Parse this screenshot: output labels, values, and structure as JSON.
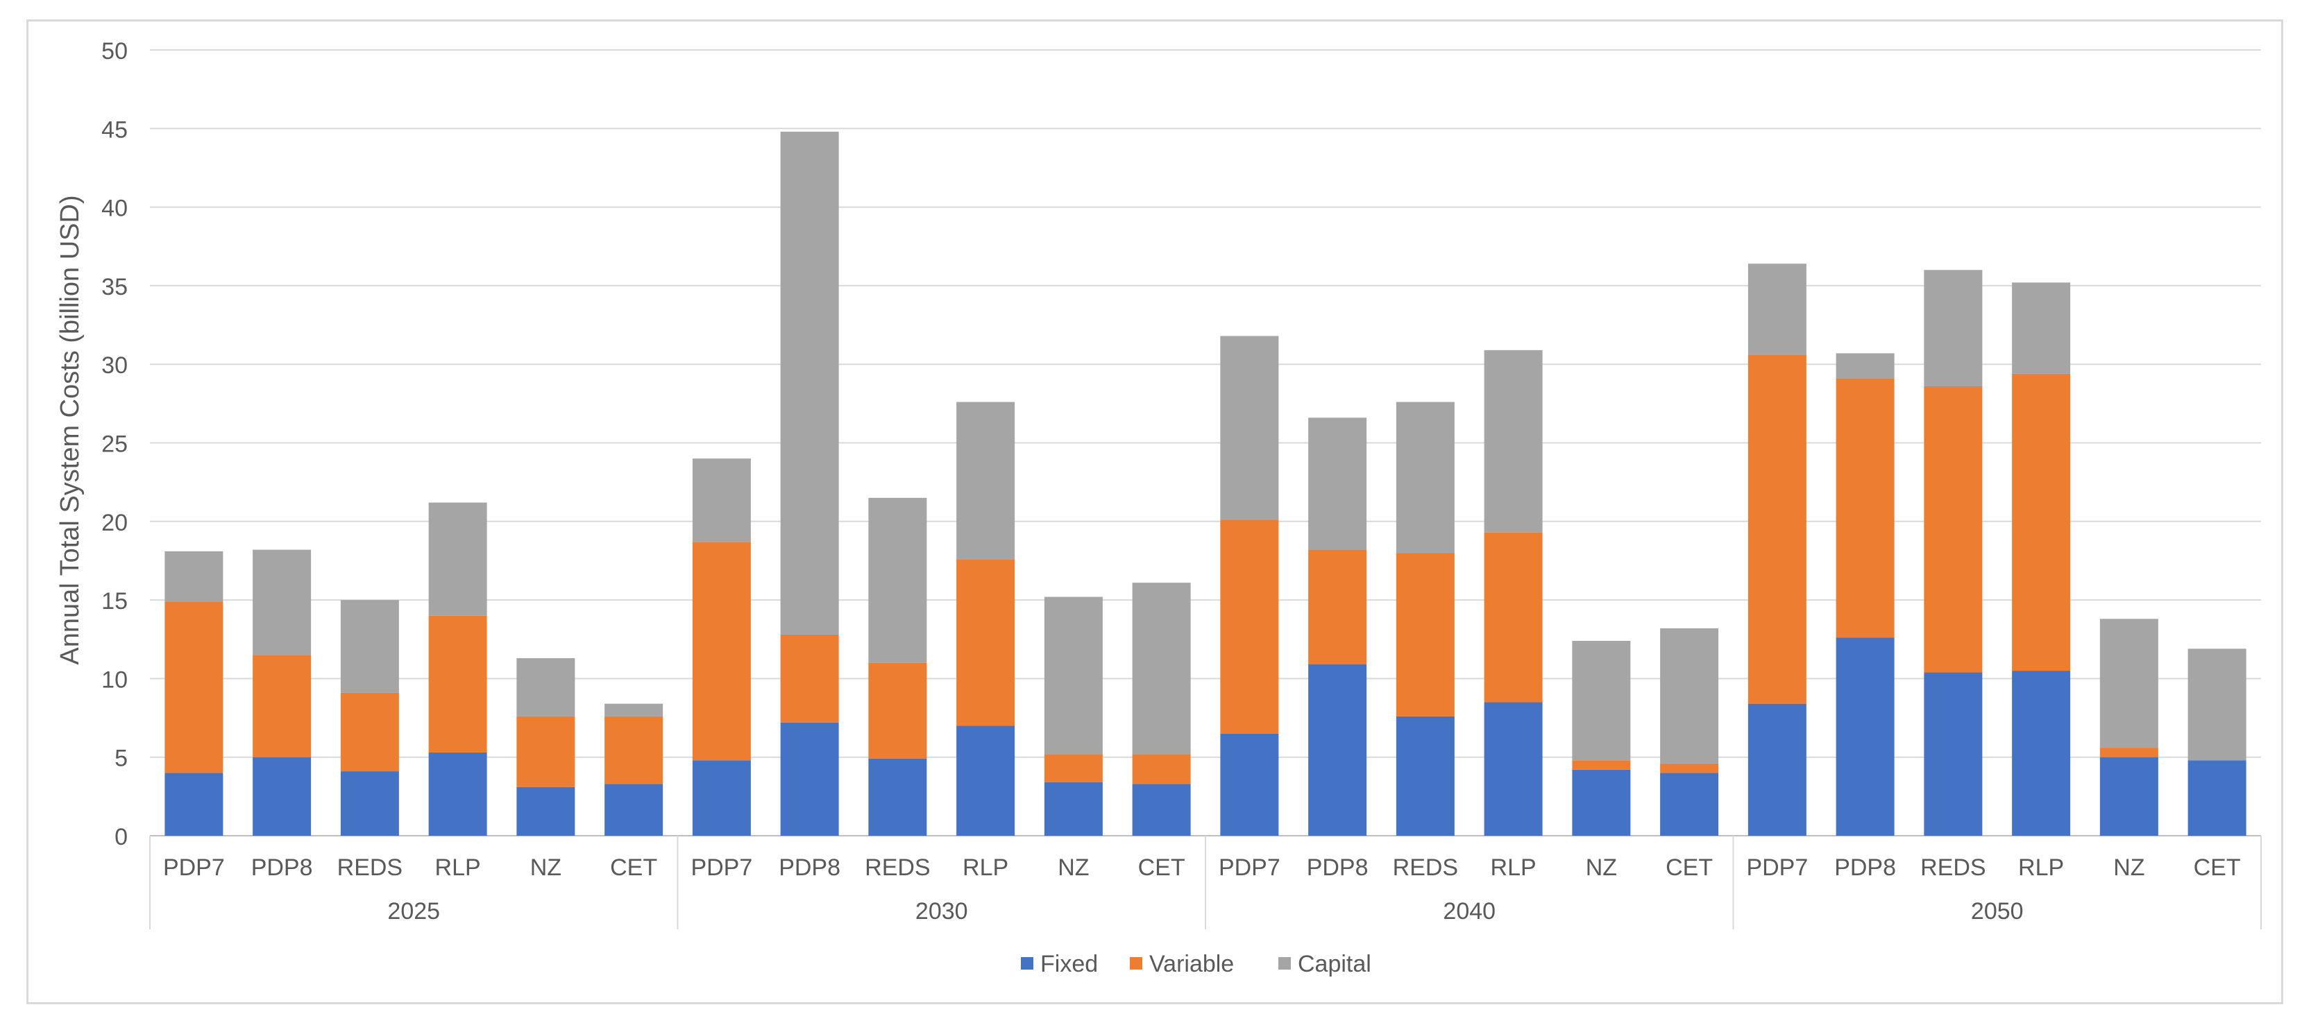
{
  "chart_data": {
    "type": "bar",
    "stacked": true,
    "ylabel": "Annual Total System Costs (billion USD)",
    "xlabel": "",
    "ylim": [
      0,
      50
    ],
    "yticks": [
      0,
      5,
      10,
      15,
      20,
      25,
      30,
      35,
      40,
      45,
      50
    ],
    "grid": true,
    "legend_position": "bottom",
    "groups": [
      "2025",
      "2030",
      "2040",
      "2050"
    ],
    "scenarios": [
      "PDP7",
      "PDP8",
      "REDS",
      "RLP",
      "NZ",
      "CET"
    ],
    "categories": [
      "PDP7",
      "PDP8",
      "REDS",
      "RLP",
      "NZ",
      "CET",
      "PDP7",
      "PDP8",
      "REDS",
      "RLP",
      "NZ",
      "CET",
      "PDP7",
      "PDP8",
      "REDS",
      "RLP",
      "NZ",
      "CET",
      "PDP7",
      "PDP8",
      "REDS",
      "RLP",
      "NZ",
      "CET"
    ],
    "series": [
      {
        "name": "Fixed",
        "color": "#4472c4",
        "values": [
          4.0,
          5.0,
          4.1,
          5.3,
          3.1,
          3.3,
          4.8,
          7.2,
          4.9,
          7.0,
          3.4,
          3.3,
          6.5,
          10.9,
          7.6,
          8.5,
          4.2,
          4.0,
          8.4,
          12.6,
          10.4,
          10.5,
          5.0,
          4.8
        ]
      },
      {
        "name": "Variable",
        "color": "#ed7d31",
        "values": [
          10.9,
          6.5,
          5.0,
          8.7,
          4.5,
          4.3,
          13.9,
          5.6,
          6.1,
          10.6,
          1.8,
          1.9,
          13.6,
          7.3,
          10.4,
          10.8,
          0.6,
          0.6,
          22.2,
          16.5,
          18.2,
          18.9,
          0.6,
          0.0
        ]
      },
      {
        "name": "Capital",
        "color": "#a5a5a5",
        "values": [
          3.2,
          6.7,
          5.9,
          7.2,
          3.7,
          0.8,
          5.3,
          32.0,
          10.5,
          10.0,
          10.0,
          10.9,
          11.7,
          8.4,
          9.6,
          11.6,
          7.6,
          8.6,
          5.8,
          1.6,
          7.4,
          5.8,
          8.2,
          7.1
        ]
      }
    ]
  }
}
